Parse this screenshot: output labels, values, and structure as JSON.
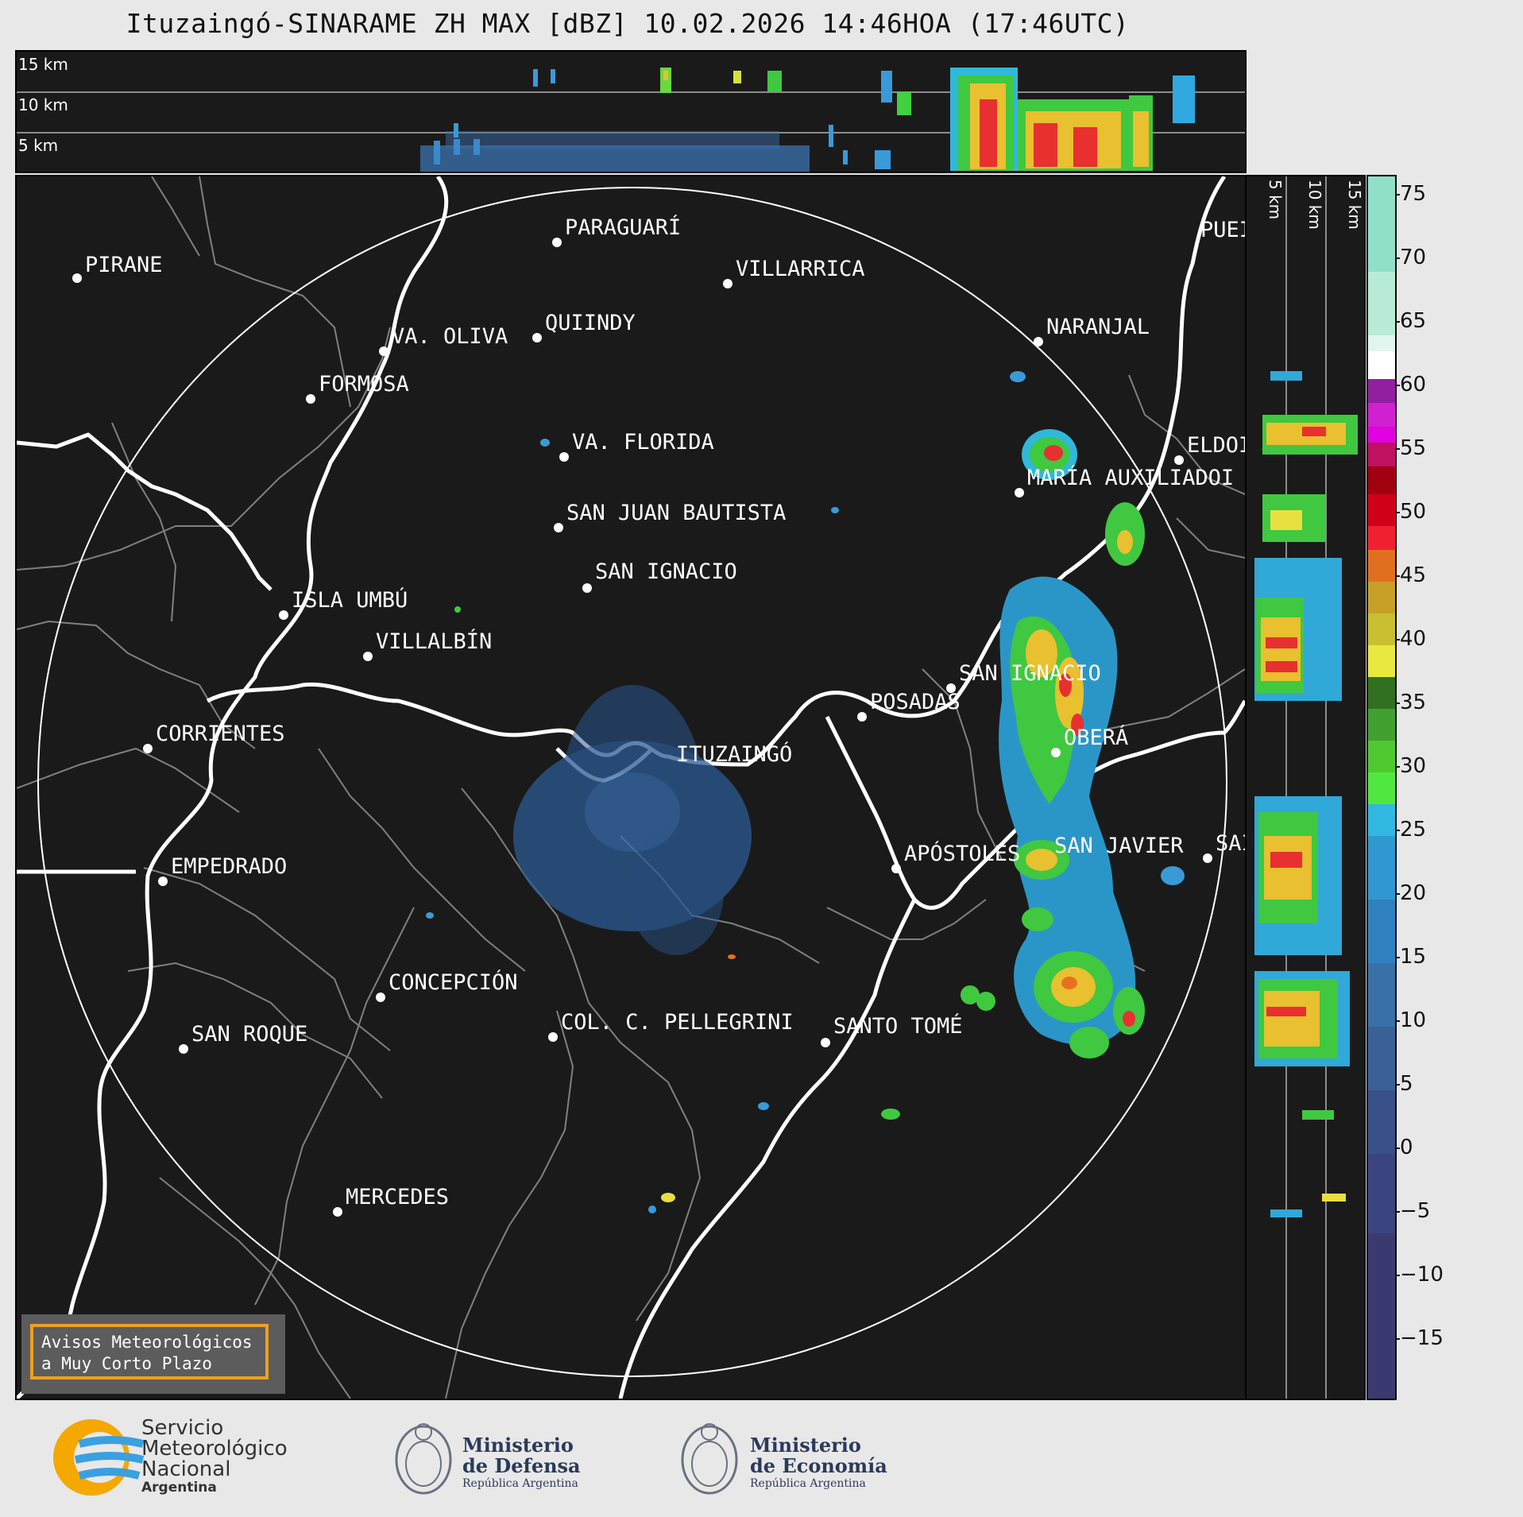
{
  "title": "Ituzaingó-SINARAME ZH MAX [dBZ] 10.02.2026 14:46HOA (17:46UTC)",
  "height_labels": [
    "15 km",
    "10 km",
    "5 km"
  ],
  "colorbar": {
    "ticks": [
      "75",
      "70",
      "65",
      "60",
      "55",
      "50",
      "45",
      "40",
      "35",
      "30",
      "25",
      "20",
      "15",
      "10",
      "5",
      "0",
      "−5",
      "−10",
      "−15"
    ]
  },
  "cities": [
    {
      "name": "PIRANE"
    },
    {
      "name": "PARAGUARÍ"
    },
    {
      "name": "VILLARRICA"
    },
    {
      "name": "QUIINDY"
    },
    {
      "name": "VA. OLIVA"
    },
    {
      "name": "FORMOSA"
    },
    {
      "name": "NARANJAL"
    },
    {
      "name": "VA. FLORIDA"
    },
    {
      "name": "ELDOI"
    },
    {
      "name": "MARÍA AUXILIADOI"
    },
    {
      "name": "SAN JUAN BAUTISTA"
    },
    {
      "name": "SAN IGNACIO"
    },
    {
      "name": "ISLA UMBÚ"
    },
    {
      "name": "VILLALBÍN"
    },
    {
      "name": "SAN IGNACIO"
    },
    {
      "name": "POSADAS"
    },
    {
      "name": "CORRIENTES"
    },
    {
      "name": "ITUZAINGÓ"
    },
    {
      "name": "OBERÁ"
    },
    {
      "name": "APÓSTOLES"
    },
    {
      "name": "SAN JAVIER"
    },
    {
      "name": "SAI"
    },
    {
      "name": "EMPEDRADO"
    },
    {
      "name": "CONCEPCIÓN"
    },
    {
      "name": "COL. C. PELLEGRINI"
    },
    {
      "name": "SANTO TOMÉ"
    },
    {
      "name": "SAN ROQUE"
    },
    {
      "name": "MERCEDES"
    },
    {
      "name": "PUEI"
    }
  ],
  "avisos": {
    "line1": "Avisos Meteorológicos",
    "line2": "a Muy Corto Plazo"
  },
  "footer": {
    "smn": {
      "l1": "Servicio",
      "l2": "Meteorológico",
      "l3": "Nacional",
      "l4": "Argentina"
    },
    "defensa": {
      "l1": "Ministerio",
      "l2": "de Defensa",
      "l3": "República Argentina"
    },
    "economia": {
      "l1": "Ministerio",
      "l2": "de Economía",
      "l3": "República Argentina"
    }
  },
  "colors": {
    "background": "#1a1a1a",
    "rings": "#ffffff",
    "rivers": "#ffffff",
    "borders": "#808080",
    "accent": "#f0a020"
  }
}
